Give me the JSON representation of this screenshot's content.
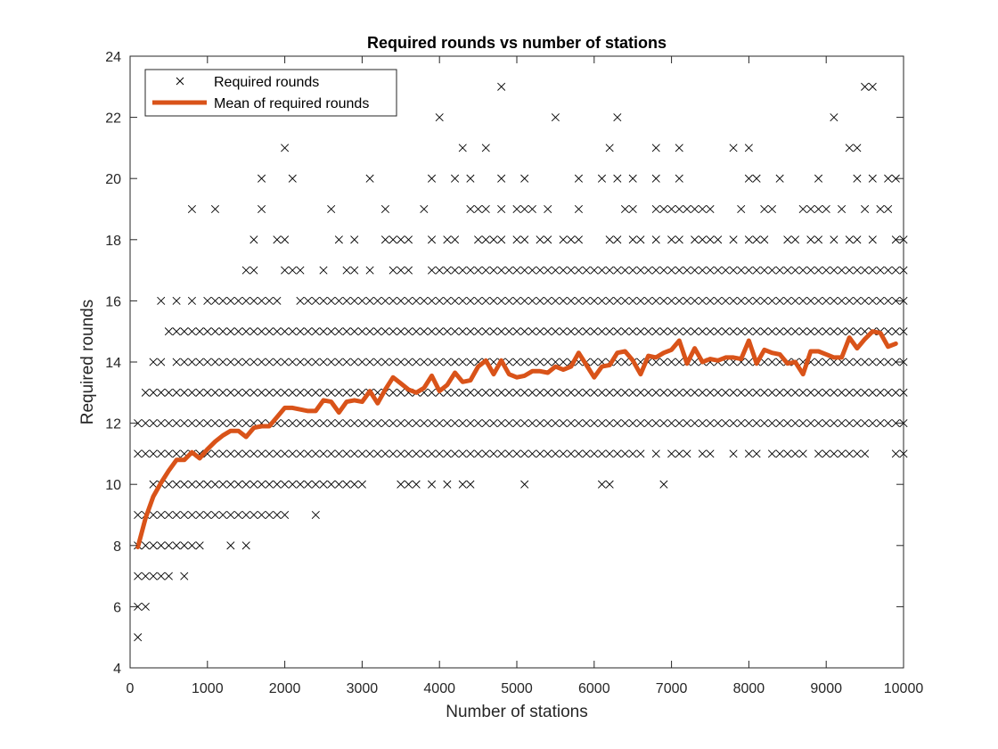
{
  "chart_data": {
    "type": "scatter",
    "title": "Required rounds vs number of stations",
    "xlabel": "Number of stations",
    "ylabel": "Required rounds",
    "xlim": [
      0,
      10000
    ],
    "ylim": [
      4,
      24
    ],
    "xticks": [
      0,
      1000,
      2000,
      3000,
      4000,
      5000,
      6000,
      7000,
      8000,
      9000,
      10000
    ],
    "yticks": [
      4,
      6,
      8,
      10,
      12,
      14,
      16,
      18,
      20,
      22,
      24
    ],
    "grid": false,
    "legend_position": "top-left",
    "series": [
      {
        "name": "Required rounds",
        "marker": "x",
        "color": "#000000",
        "points": [
          [
            100,
            5
          ],
          [
            100,
            6
          ],
          [
            200,
            6
          ],
          [
            100,
            7
          ],
          [
            200,
            7
          ],
          [
            300,
            7
          ],
          [
            400,
            7
          ],
          [
            500,
            7
          ],
          [
            700,
            7
          ],
          [
            100,
            8
          ],
          [
            200,
            8
          ],
          [
            300,
            8
          ],
          [
            400,
            8
          ],
          [
            500,
            8
          ],
          [
            600,
            8
          ],
          [
            700,
            8
          ],
          [
            800,
            8
          ],
          [
            900,
            8
          ],
          [
            1300,
            8
          ],
          [
            1500,
            8
          ],
          [
            1000,
            9
          ],
          [
            2000,
            9
          ],
          [
            2400,
            9
          ],
          [
            3500,
            10
          ],
          [
            3600,
            10
          ],
          [
            3700,
            10
          ],
          [
            3900,
            10
          ],
          [
            4100,
            10
          ],
          [
            4300,
            10
          ],
          [
            4400,
            10
          ],
          [
            5100,
            10
          ],
          [
            6100,
            10
          ],
          [
            6200,
            10
          ],
          [
            6900,
            10
          ],
          [
            6500,
            11
          ],
          [
            6600,
            11
          ],
          [
            6800,
            11
          ],
          [
            7000,
            11
          ],
          [
            7100,
            11
          ],
          [
            7200,
            11
          ],
          [
            7400,
            11
          ],
          [
            7500,
            11
          ],
          [
            7800,
            11
          ],
          [
            8000,
            11
          ],
          [
            8100,
            11
          ],
          [
            8300,
            11
          ],
          [
            8400,
            11
          ],
          [
            8500,
            11
          ],
          [
            8600,
            11
          ],
          [
            8700,
            11
          ],
          [
            8900,
            11
          ],
          [
            9000,
            11
          ],
          [
            9100,
            11
          ],
          [
            9200,
            11
          ],
          [
            9300,
            11
          ],
          [
            9400,
            11
          ],
          [
            9500,
            11
          ],
          [
            9900,
            11
          ],
          [
            10000,
            11
          ],
          [
            300,
            14
          ],
          [
            400,
            14
          ],
          [
            400,
            16
          ],
          [
            600,
            16
          ],
          [
            800,
            16
          ],
          [
            1000,
            16
          ],
          [
            1900,
            16
          ],
          [
            1500,
            17
          ],
          [
            1600,
            17
          ],
          [
            2000,
            17
          ],
          [
            2100,
            17
          ],
          [
            2200,
            17
          ],
          [
            2500,
            17
          ],
          [
            2800,
            17
          ],
          [
            2900,
            17
          ],
          [
            3100,
            17
          ],
          [
            3400,
            17
          ],
          [
            3500,
            17
          ],
          [
            3600,
            17
          ],
          [
            1600,
            18
          ],
          [
            1900,
            18
          ],
          [
            2000,
            18
          ],
          [
            2700,
            18
          ],
          [
            2900,
            18
          ],
          [
            3300,
            18
          ],
          [
            3400,
            18
          ],
          [
            3500,
            18
          ],
          [
            3600,
            18
          ],
          [
            3900,
            18
          ],
          [
            4100,
            18
          ],
          [
            4200,
            18
          ],
          [
            4500,
            18
          ],
          [
            4600,
            18
          ],
          [
            4700,
            18
          ],
          [
            4800,
            18
          ],
          [
            5000,
            18
          ],
          [
            5100,
            18
          ],
          [
            5300,
            18
          ],
          [
            5400,
            18
          ],
          [
            5600,
            18
          ],
          [
            5700,
            18
          ],
          [
            5800,
            18
          ],
          [
            6200,
            18
          ],
          [
            6300,
            18
          ],
          [
            6500,
            18
          ],
          [
            6600,
            18
          ],
          [
            6800,
            18
          ],
          [
            7000,
            18
          ],
          [
            7100,
            18
          ],
          [
            7300,
            18
          ],
          [
            7400,
            18
          ],
          [
            7500,
            18
          ],
          [
            7600,
            18
          ],
          [
            7800,
            18
          ],
          [
            8000,
            18
          ],
          [
            8100,
            18
          ],
          [
            8200,
            18
          ],
          [
            8500,
            18
          ],
          [
            8600,
            18
          ],
          [
            8800,
            18
          ],
          [
            8900,
            18
          ],
          [
            9100,
            18
          ],
          [
            9300,
            18
          ],
          [
            9400,
            18
          ],
          [
            9600,
            18
          ],
          [
            9900,
            18
          ],
          [
            10000,
            18
          ],
          [
            800,
            19
          ],
          [
            1100,
            19
          ],
          [
            1700,
            19
          ],
          [
            2600,
            19
          ],
          [
            3300,
            19
          ],
          [
            3800,
            19
          ],
          [
            4400,
            19
          ],
          [
            4500,
            19
          ],
          [
            4600,
            19
          ],
          [
            4800,
            19
          ],
          [
            5000,
            19
          ],
          [
            5100,
            19
          ],
          [
            5200,
            19
          ],
          [
            5400,
            19
          ],
          [
            5800,
            19
          ],
          [
            6400,
            19
          ],
          [
            6500,
            19
          ],
          [
            6800,
            19
          ],
          [
            6900,
            19
          ],
          [
            7000,
            19
          ],
          [
            7100,
            19
          ],
          [
            7200,
            19
          ],
          [
            7300,
            19
          ],
          [
            7400,
            19
          ],
          [
            7500,
            19
          ],
          [
            7900,
            19
          ],
          [
            8200,
            19
          ],
          [
            8300,
            19
          ],
          [
            8700,
            19
          ],
          [
            8800,
            19
          ],
          [
            8900,
            19
          ],
          [
            9000,
            19
          ],
          [
            9200,
            19
          ],
          [
            9500,
            19
          ],
          [
            9700,
            19
          ],
          [
            9800,
            19
          ],
          [
            1700,
            20
          ],
          [
            2100,
            20
          ],
          [
            3100,
            20
          ],
          [
            3900,
            20
          ],
          [
            4200,
            20
          ],
          [
            4400,
            20
          ],
          [
            4800,
            20
          ],
          [
            5100,
            20
          ],
          [
            5800,
            20
          ],
          [
            6100,
            20
          ],
          [
            6300,
            20
          ],
          [
            6500,
            20
          ],
          [
            6800,
            20
          ],
          [
            7100,
            20
          ],
          [
            8000,
            20
          ],
          [
            8100,
            20
          ],
          [
            8400,
            20
          ],
          [
            8900,
            20
          ],
          [
            9400,
            20
          ],
          [
            9600,
            20
          ],
          [
            9800,
            20
          ],
          [
            9900,
            20
          ],
          [
            2000,
            21
          ],
          [
            4300,
            21
          ],
          [
            4600,
            21
          ],
          [
            6200,
            21
          ],
          [
            6800,
            21
          ],
          [
            7100,
            21
          ],
          [
            7800,
            21
          ],
          [
            8000,
            21
          ],
          [
            9300,
            21
          ],
          [
            9400,
            21
          ],
          [
            4000,
            22
          ],
          [
            5500,
            22
          ],
          [
            6300,
            22
          ],
          [
            9100,
            22
          ],
          [
            4800,
            23
          ],
          [
            9500,
            23
          ],
          [
            9600,
            23
          ]
        ]
      },
      {
        "name": "Mean of required rounds",
        "marker": "line",
        "color": "#D95319",
        "x": [
          100,
          200,
          300,
          400,
          500,
          600,
          700,
          800,
          900,
          1000,
          1100,
          1200,
          1300,
          1400,
          1500,
          1600,
          1700,
          1800,
          1900,
          2000,
          2100,
          2200,
          2300,
          2400,
          2500,
          2600,
          2700,
          2800,
          2900,
          3000,
          3100,
          3200,
          3300,
          3400,
          3500,
          3600,
          3700,
          3800,
          3900,
          4000,
          4100,
          4200,
          4300,
          4400,
          4500,
          4600,
          4700,
          4800,
          4900,
          5000,
          5100,
          5200,
          5300,
          5400,
          5500,
          5600,
          5700,
          5800,
          5900,
          6000,
          6100,
          6200,
          6300,
          6400,
          6500,
          6600,
          6700,
          6800,
          6900,
          7000,
          7100,
          7200,
          7300,
          7400,
          7500,
          7600,
          7700,
          7800,
          7900,
          8000,
          8100,
          8200,
          8300,
          8400,
          8500,
          8600,
          8700,
          8800,
          8900,
          9000,
          9100,
          9200,
          9300,
          9400,
          9500,
          9600,
          9700,
          9800,
          9900
        ],
        "y": [
          7.95,
          8.9,
          9.6,
          10.05,
          10.45,
          10.8,
          10.8,
          11.05,
          10.85,
          11.15,
          11.4,
          11.6,
          11.75,
          11.75,
          11.55,
          11.85,
          11.9,
          11.9,
          12.2,
          12.5,
          12.5,
          12.45,
          12.4,
          12.4,
          12.75,
          12.7,
          12.35,
          12.7,
          12.75,
          12.7,
          13.05,
          12.65,
          13.1,
          13.5,
          13.3,
          13.1,
          13.0,
          13.15,
          13.55,
          13.05,
          13.25,
          13.65,
          13.35,
          13.4,
          13.85,
          14.05,
          13.6,
          14.05,
          13.6,
          13.5,
          13.55,
          13.7,
          13.7,
          13.65,
          13.85,
          13.75,
          13.85,
          14.3,
          13.9,
          13.5,
          13.85,
          13.9,
          14.3,
          14.35,
          14.05,
          13.6,
          14.2,
          14.15,
          14.3,
          14.4,
          14.7,
          13.95,
          14.45,
          14.0,
          14.1,
          14.05,
          14.15,
          14.15,
          14.1,
          14.7,
          13.95,
          14.4,
          14.3,
          14.25,
          13.95,
          14.0,
          13.6,
          14.35,
          14.35,
          14.25,
          14.15,
          14.15,
          14.8,
          14.45,
          14.75,
          15.0,
          14.95,
          14.5,
          14.6
        ]
      }
    ],
    "dense_bands": [
      {
        "y": 9,
        "x_from": 100,
        "x_to": 1900
      },
      {
        "y": 10,
        "x_from": 300,
        "x_to": 3000
      },
      {
        "y": 11,
        "x_from": 100,
        "x_to": 6400
      },
      {
        "y": 12,
        "x_from": 100,
        "x_to": 10000
      },
      {
        "y": 13,
        "x_from": 200,
        "x_to": 10000
      },
      {
        "y": 14,
        "x_from": 600,
        "x_to": 10000
      },
      {
        "y": 15,
        "x_from": 500,
        "x_to": 10000
      },
      {
        "y": 15,
        "x_from": 700,
        "x_to": 2300
      },
      {
        "y": 16,
        "x_from": 1100,
        "x_to": 1800
      },
      {
        "y": 16,
        "x_from": 2200,
        "x_to": 10000
      },
      {
        "y": 17,
        "x_from": 3900,
        "x_to": 10000
      }
    ]
  }
}
